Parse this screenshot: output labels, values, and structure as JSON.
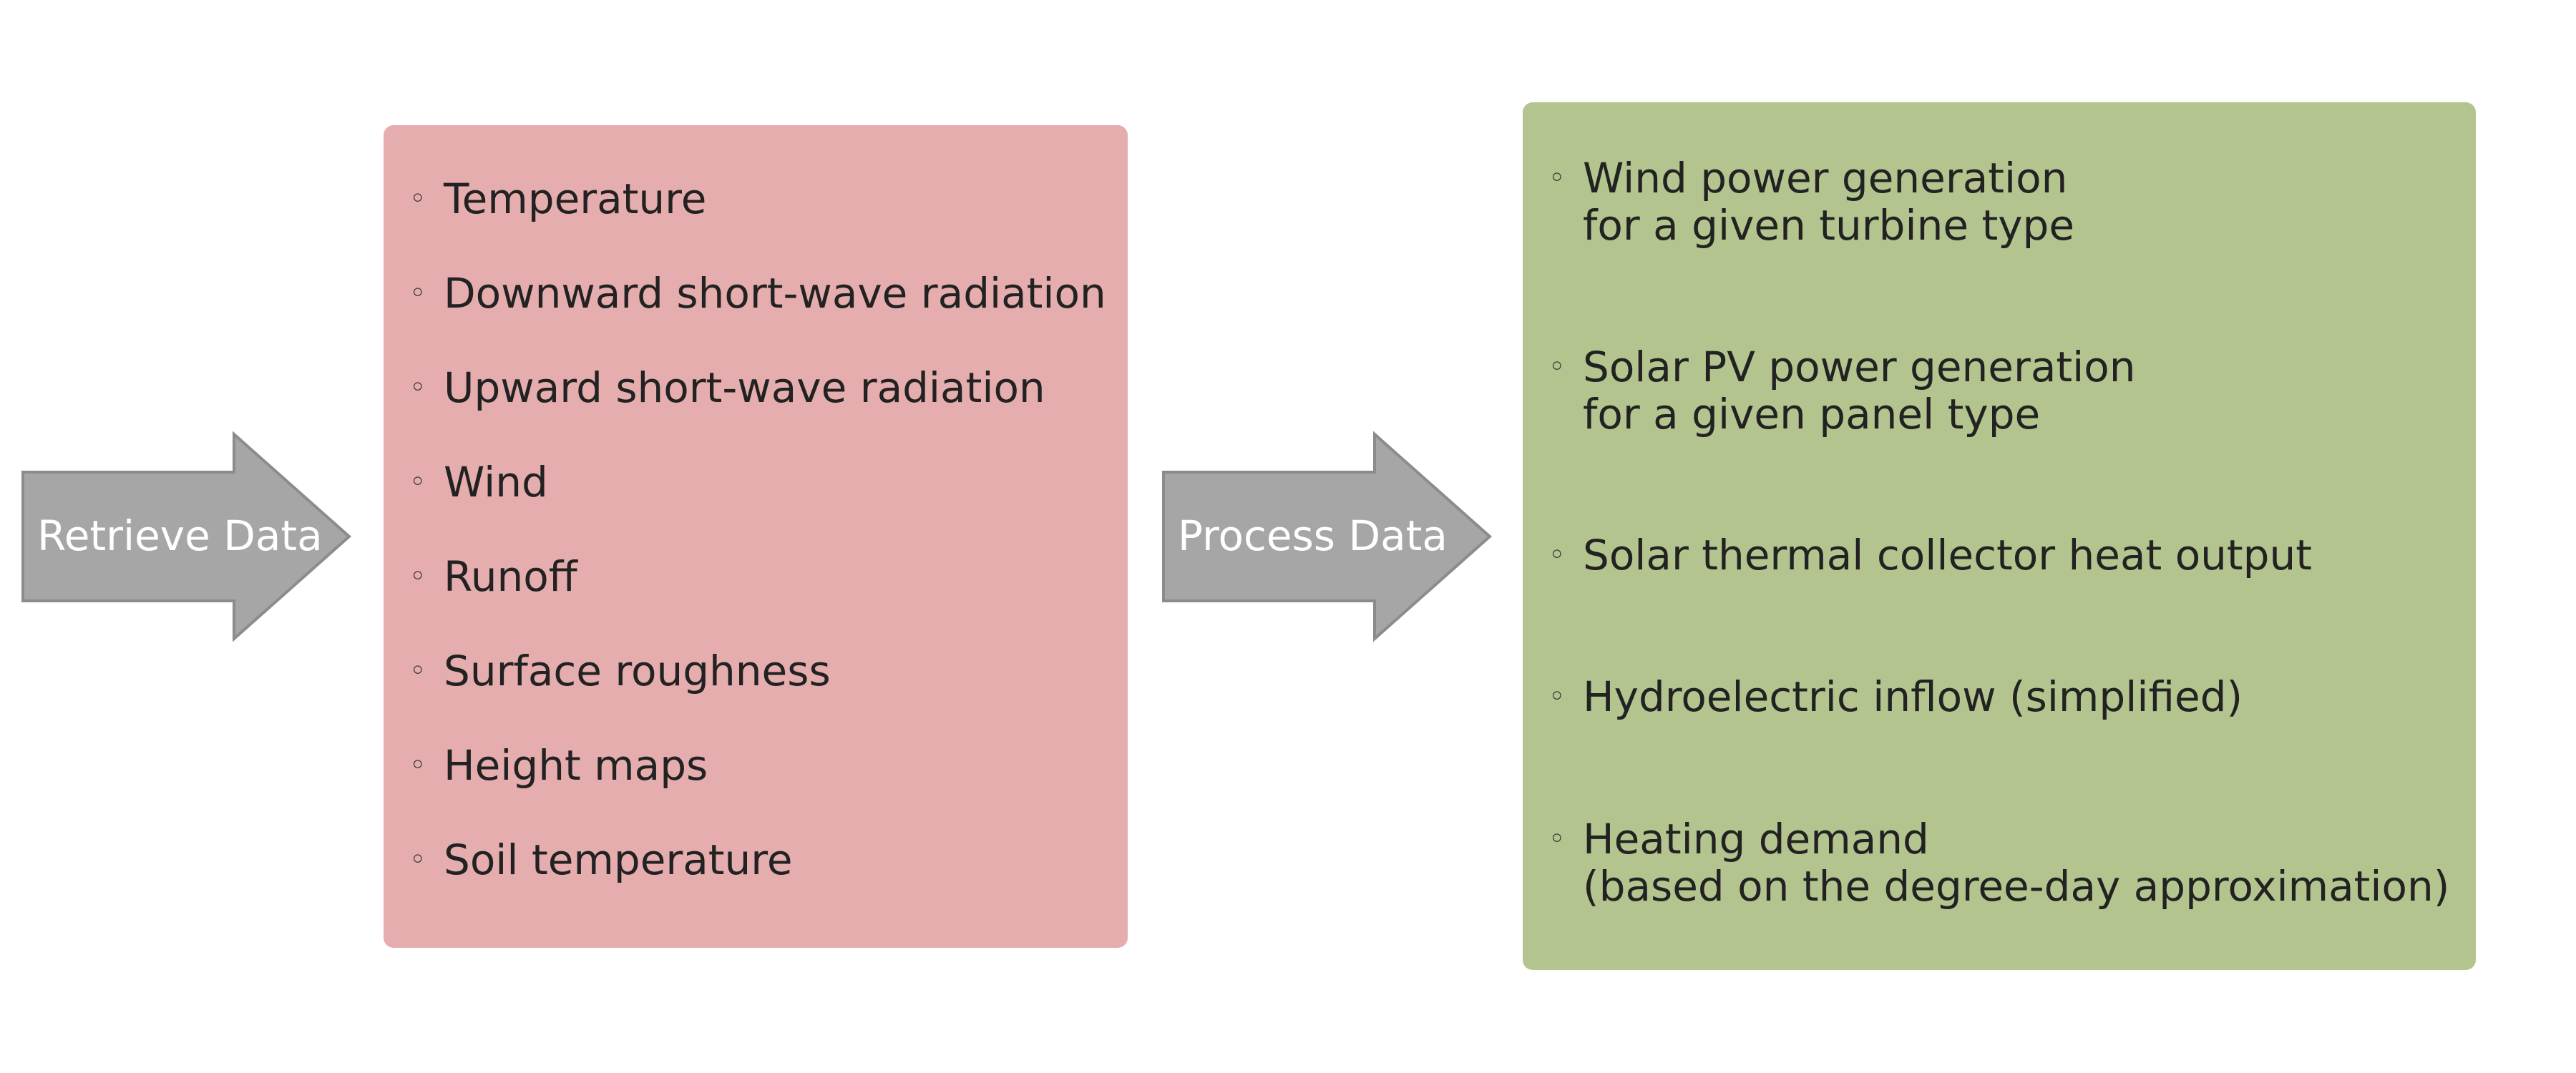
{
  "colors": {
    "arrow_fill": "#a6a6a6",
    "arrow_stroke": "#8c8c8c",
    "box_input": "#e6adae",
    "box_output": "#b4c48e",
    "text": "#222222",
    "arrow_text": "#ffffff"
  },
  "arrows": {
    "retrieve": {
      "label": "Retrieve Data"
    },
    "process": {
      "label": "Process Data"
    }
  },
  "bullet_glyph": "◦",
  "input_box": {
    "items": [
      {
        "lines": [
          "Temperature"
        ]
      },
      {
        "lines": [
          "Downward short-wave radiation"
        ]
      },
      {
        "lines": [
          "Upward short-wave radiation"
        ]
      },
      {
        "lines": [
          "Wind"
        ]
      },
      {
        "lines": [
          "Runoff"
        ]
      },
      {
        "lines": [
          "Surface roughness"
        ]
      },
      {
        "lines": [
          "Height maps"
        ]
      },
      {
        "lines": [
          "Soil temperature"
        ]
      }
    ]
  },
  "output_box": {
    "items": [
      {
        "lines": [
          "Wind power generation",
          "for a given turbine type"
        ]
      },
      {
        "lines": [
          "Solar PV power generation",
          "for a given panel type"
        ]
      },
      {
        "lines": [
          "Solar thermal collector heat output"
        ]
      },
      {
        "lines": [
          "Hydroelectric inflow (simplified)"
        ]
      },
      {
        "lines": [
          "Heating demand",
          "(based on the degree-day approximation)"
        ]
      }
    ]
  }
}
